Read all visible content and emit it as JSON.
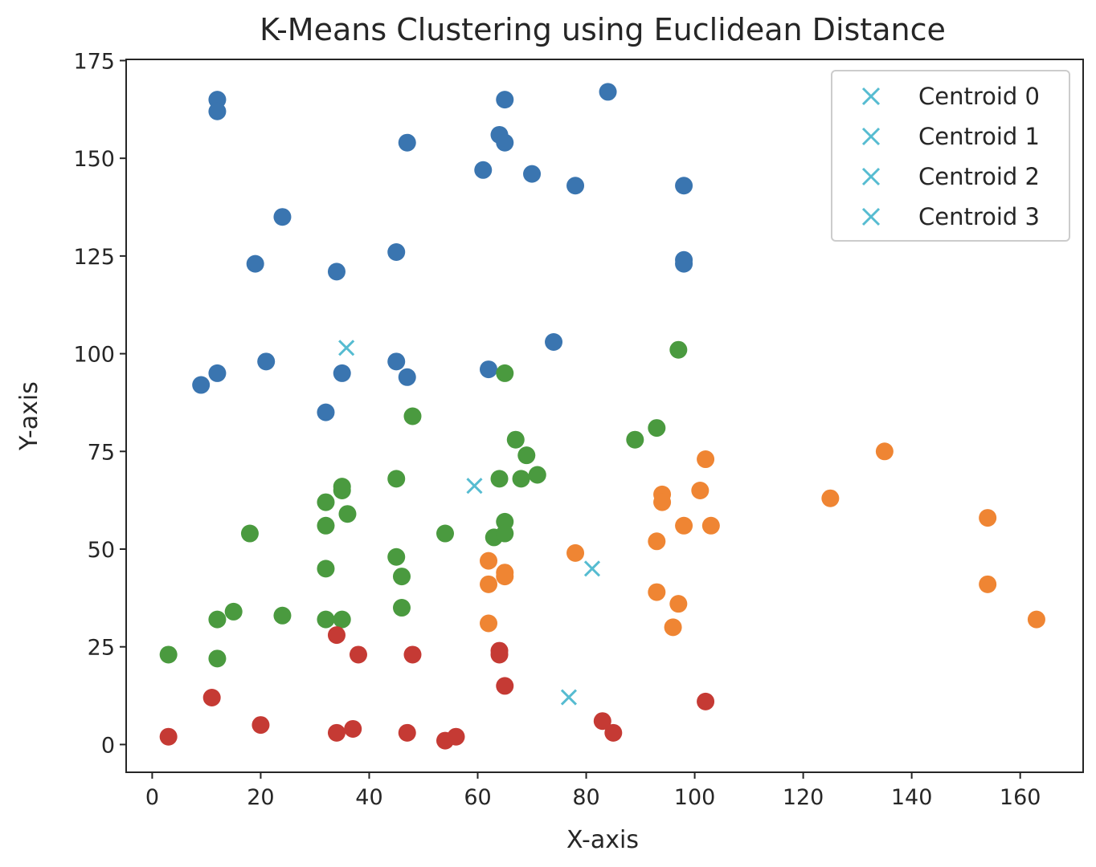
{
  "chart_data": {
    "type": "scatter",
    "title": "K-Means Clustering using Euclidean Distance",
    "xlabel": "X-axis",
    "ylabel": "Y-axis",
    "xlim": [
      -4.8,
      171.6
    ],
    "ylim": [
      -7.1,
      175.3
    ],
    "xticks": [
      0,
      20,
      40,
      60,
      80,
      100,
      120,
      140,
      160
    ],
    "yticks": [
      0,
      25,
      50,
      75,
      100,
      125,
      150,
      175
    ],
    "grid": false,
    "legend_position": "top-right",
    "legend": [
      {
        "label": "Centroid 0",
        "color": "#56bcd1",
        "marker": "x"
      },
      {
        "label": "Centroid 1",
        "color": "#56bcd1",
        "marker": "x"
      },
      {
        "label": "Centroid 2",
        "color": "#56bcd1",
        "marker": "x"
      },
      {
        "label": "Centroid 3",
        "color": "#56bcd1",
        "marker": "x"
      }
    ],
    "centroids": [
      {
        "x": 35.8,
        "y": 101.5
      },
      {
        "x": 59.4,
        "y": 66.2
      },
      {
        "x": 81.1,
        "y": 45.0
      },
      {
        "x": 76.8,
        "y": 12.1
      }
    ],
    "series": [
      {
        "color": "#3a75b0",
        "x": [
          12,
          12,
          24,
          19,
          34,
          45,
          47,
          64,
          65,
          65,
          61,
          70,
          78,
          84,
          98,
          98,
          98,
          9,
          12,
          21,
          35,
          32,
          45,
          47,
          62,
          74
        ],
        "y": [
          165,
          162,
          135,
          123,
          121,
          126,
          154,
          156,
          154,
          165,
          147,
          146,
          143,
          167,
          143,
          124,
          123,
          92,
          95,
          98,
          95,
          85,
          98,
          94,
          96,
          103
        ]
      },
      {
        "color": "#ef8533",
        "x": [
          62,
          62,
          62,
          65,
          65,
          78,
          93,
          93,
          94,
          94,
          97,
          96,
          98,
          101,
          102,
          103,
          125,
          135,
          154,
          154,
          163
        ],
        "y": [
          47,
          41,
          31,
          44,
          43,
          49,
          52,
          39,
          64,
          62,
          36,
          30,
          56,
          65,
          73,
          56,
          63,
          75,
          58,
          41,
          32
        ]
      },
      {
        "color": "#4a9a3f",
        "x": [
          3,
          12,
          12,
          15,
          18,
          24,
          32,
          32,
          32,
          32,
          35,
          35,
          35,
          36,
          45,
          45,
          46,
          46,
          48,
          54,
          63,
          64,
          65,
          65,
          65,
          67,
          68,
          69,
          71,
          89,
          93,
          97
        ],
        "y": [
          23,
          32,
          22,
          34,
          54,
          33,
          62,
          56,
          45,
          32,
          66,
          65,
          32,
          59,
          68,
          48,
          43,
          35,
          84,
          54,
          53,
          68,
          57,
          54,
          95,
          78,
          68,
          74,
          69,
          78,
          81,
          101
        ]
      },
      {
        "color": "#c53a34",
        "x": [
          3,
          11,
          20,
          34,
          34,
          37,
          38,
          47,
          48,
          54,
          56,
          64,
          64,
          65,
          83,
          85,
          102
        ],
        "y": [
          2,
          12,
          5,
          28,
          3,
          4,
          23,
          3,
          23,
          1,
          2,
          24,
          23,
          15,
          6,
          3,
          11
        ]
      }
    ]
  }
}
